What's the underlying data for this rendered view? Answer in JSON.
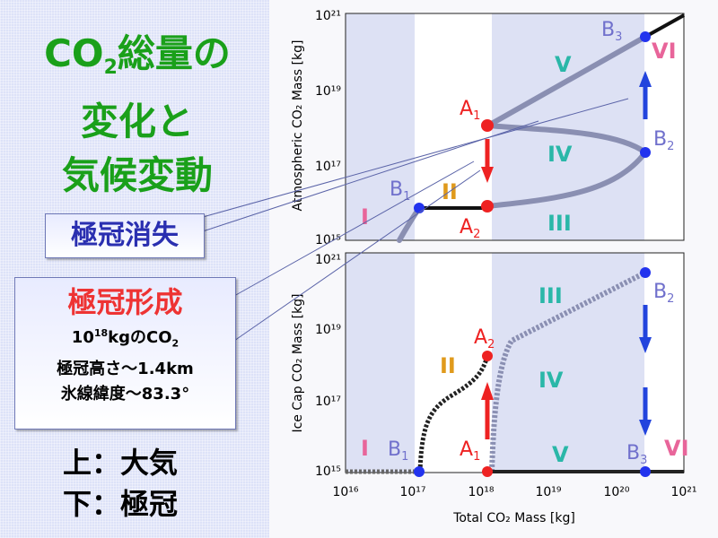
{
  "title": {
    "line1_pre": "CO",
    "line1_sub": "2",
    "line1_post": "総量の",
    "line2": "変化と",
    "line3": "気候変動"
  },
  "callout_loss": {
    "text": "極冠消失"
  },
  "callout_formation": {
    "title": "極冠形成",
    "line1_pre": "10",
    "line1_sup": "18",
    "line1_mid": "kgのCO",
    "line1_sub": "2",
    "line2": "極冠高さ～1.4km",
    "line3": "氷線緯度～83.3°"
  },
  "caption": {
    "line1": "上：大気",
    "line2": "下：極冠"
  },
  "diagram": {
    "top_ylabel": "Atmospheric CO₂ Mass [kg]",
    "bottom_ylabel": "Ice Cap CO₂ Mass [kg]",
    "xlabel": "Total CO₂ Mass [kg]",
    "x_ticks": [
      "10¹⁶",
      "10¹⁷",
      "10¹⁸",
      "10¹⁹",
      "10²⁰",
      "10²¹"
    ],
    "top_y_ticks": [
      "10¹⁵",
      "10¹⁷",
      "10¹⁹",
      "10²¹"
    ],
    "bottom_y_ticks": [
      "10¹⁵",
      "10¹⁷",
      "10¹⁹",
      "10²¹"
    ],
    "top_regions": [
      "I",
      "II",
      "III",
      "IV",
      "V",
      "VI"
    ],
    "bottom_regions": [
      "I",
      "II",
      "III",
      "IV",
      "V",
      "VI"
    ],
    "top_points": {
      "A1": "A",
      "A2": "A",
      "B1": "B",
      "B2": "B",
      "B3": "B",
      "A1_sub": "1",
      "A2_sub": "2",
      "B1_sub": "1",
      "B2_sub": "2",
      "B3_sub": "3"
    },
    "bottom_points": {
      "A1": "A",
      "A2": "A",
      "B1": "B",
      "B2": "B",
      "B3": "B",
      "A1_sub": "1",
      "A2_sub": "2",
      "B1_sub": "1",
      "B2_sub": "2",
      "B3_sub": "3"
    },
    "colors": {
      "region_fill": "#dde1f4",
      "gray_curve": "#8a8fb2",
      "black_curve": "#111111",
      "point_red": "#ee2222",
      "point_blue": "#2233ee",
      "arrow_red": "#ee2222",
      "arrow_blue": "#2244dd",
      "label_I": "#e8659a",
      "label_II": "#e09a1c",
      "label_teal": "#2ab7a8",
      "label_VI": "#e8659a",
      "point_label_A": "#ee2222",
      "point_label_B": "#7070cc"
    }
  }
}
